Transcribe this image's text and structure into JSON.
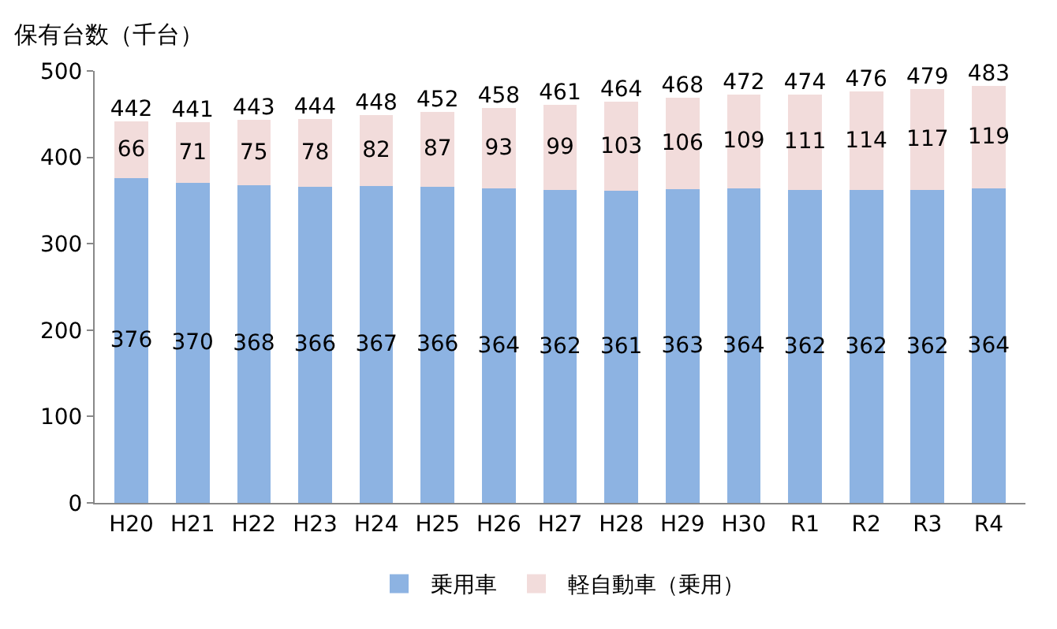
{
  "chart_data": {
    "type": "bar",
    "stacked": true,
    "ylabel": "保有台数（千台）",
    "categories": [
      "H20",
      "H21",
      "H22",
      "H23",
      "H24",
      "H25",
      "H26",
      "H27",
      "H28",
      "H29",
      "H30",
      "R1",
      "R2",
      "R3",
      "R4"
    ],
    "series": [
      {
        "name": "乗用車",
        "color": "#8db3e2",
        "values": [
          376,
          370,
          368,
          366,
          367,
          366,
          364,
          362,
          361,
          363,
          364,
          362,
          362,
          362,
          364
        ]
      },
      {
        "name": "軽自動車（乗用）",
        "color": "#f2dcdb",
        "values": [
          66,
          71,
          75,
          78,
          82,
          87,
          93,
          99,
          103,
          106,
          109,
          111,
          114,
          117,
          119
        ]
      }
    ],
    "totals": [
      "442",
      "441",
      "443",
      "444",
      "448",
      "452",
      "458",
      "461",
      "464",
      "468",
      "472",
      "474",
      "476",
      "479",
      "483"
    ],
    "data_labels": true,
    "ylim": [
      0,
      500
    ],
    "yticks": [
      0,
      100,
      200,
      300,
      400,
      500
    ],
    "legend": "bottom"
  }
}
